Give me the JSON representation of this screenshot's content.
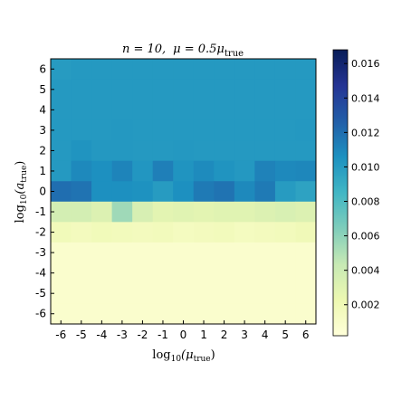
{
  "chart_data": {
    "type": "heatmap",
    "title": "n = 10,  μ = 0.5μ_true",
    "title_parts": {
      "n_eq": "n = 10,",
      "mu_eq": "μ = 0.5μ",
      "mu_sub": "true"
    },
    "xlabel": {
      "main": "log",
      "base": "10",
      "open": "(μ",
      "sub": "true",
      "close": ")"
    },
    "ylabel": {
      "main": "log",
      "base": "10",
      "open": "(a",
      "sub": "true",
      "close": ")"
    },
    "x_values": [
      -6,
      -5,
      -4,
      -3,
      -2,
      -1,
      0,
      1,
      2,
      3,
      4,
      5,
      6
    ],
    "y_values": [
      6,
      5,
      4,
      3,
      2,
      1,
      0,
      -1,
      -2,
      -3,
      -4,
      -5,
      -6
    ],
    "x_tick_labels": [
      "-6",
      "-5",
      "-4",
      "-3",
      "-2",
      "-1",
      "0",
      "1",
      "2",
      "3",
      "4",
      "5",
      "6"
    ],
    "y_tick_labels": [
      "6",
      "5",
      "4",
      "3",
      "2",
      "1",
      "0",
      "-1",
      "-2",
      "-3",
      "-4",
      "-5",
      "-6"
    ],
    "z": [
      [
        0.01,
        0.0101,
        0.0101,
        0.0101,
        0.0101,
        0.0101,
        0.0101,
        0.0101,
        0.0101,
        0.0101,
        0.0101,
        0.0101,
        0.0101
      ],
      [
        0.0101,
        0.0101,
        0.0101,
        0.0101,
        0.0101,
        0.0101,
        0.0101,
        0.0101,
        0.0101,
        0.0101,
        0.0101,
        0.0101,
        0.0101
      ],
      [
        0.0101,
        0.0101,
        0.0101,
        0.0101,
        0.0101,
        0.0101,
        0.0101,
        0.0101,
        0.0101,
        0.0101,
        0.0101,
        0.0101,
        0.0101
      ],
      [
        0.0101,
        0.0101,
        0.0101,
        0.0102,
        0.0101,
        0.0101,
        0.0101,
        0.0101,
        0.0101,
        0.0101,
        0.0101,
        0.0101,
        0.0102
      ],
      [
        0.0101,
        0.0104,
        0.0102,
        0.0102,
        0.0101,
        0.0101,
        0.0102,
        0.0101,
        0.0101,
        0.0101,
        0.0101,
        0.0101,
        0.0101
      ],
      [
        0.0101,
        0.0109,
        0.0106,
        0.0111,
        0.0103,
        0.0113,
        0.0104,
        0.0108,
        0.0104,
        0.0102,
        0.0112,
        0.0109,
        0.011
      ],
      [
        0.012,
        0.0118,
        0.0106,
        0.0106,
        0.0105,
        0.01,
        0.0106,
        0.0115,
        0.0118,
        0.0109,
        0.0115,
        0.01,
        0.0096
      ],
      [
        0.0037,
        0.0037,
        0.0032,
        0.0055,
        0.0035,
        0.0028,
        0.003,
        0.0028,
        0.003,
        0.003,
        0.0032,
        0.0034,
        0.0032
      ],
      [
        0.0018,
        0.0016,
        0.0018,
        0.0017,
        0.0016,
        0.0017,
        0.0015,
        0.0016,
        0.0017,
        0.0015,
        0.0016,
        0.0017,
        0.0019
      ],
      [
        0.0008,
        0.0008,
        0.0008,
        0.0008,
        0.0008,
        0.0008,
        0.0008,
        0.0008,
        0.0008,
        0.0008,
        0.0008,
        0.0008,
        0.0008
      ],
      [
        0.0008,
        0.0008,
        0.0008,
        0.0008,
        0.0008,
        0.0008,
        0.0008,
        0.0008,
        0.0008,
        0.0008,
        0.0008,
        0.0008,
        0.0008
      ],
      [
        0.0008,
        0.0008,
        0.0008,
        0.0008,
        0.0008,
        0.0008,
        0.0008,
        0.0008,
        0.0008,
        0.0008,
        0.0008,
        0.0008,
        0.0008
      ],
      [
        0.0008,
        0.0008,
        0.0008,
        0.0008,
        0.0008,
        0.0008,
        0.0008,
        0.0008,
        0.0008,
        0.0008,
        0.0008,
        0.0008,
        0.0008
      ]
    ],
    "colorbar": {
      "colormap": "YlGnBu",
      "zmin": 0.0002,
      "zmax": 0.0168,
      "ticks": [
        0.002,
        0.004,
        0.006,
        0.008,
        0.01,
        0.012,
        0.014,
        0.016
      ],
      "tick_labels": [
        "0.002",
        "0.004",
        "0.006",
        "0.008",
        "0.010",
        "0.012",
        "0.014",
        "0.016"
      ]
    },
    "grid": false
  }
}
